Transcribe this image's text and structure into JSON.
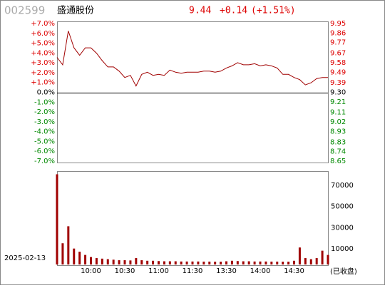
{
  "header": {
    "code": "002599",
    "name": "盛通股份",
    "price": "9.44",
    "change": "+0.14",
    "change_pct": "(+1.51%)"
  },
  "date": "2025-02-13",
  "status": "(已收盘)",
  "chart_data": [
    {
      "type": "line",
      "series": [
        {
          "color": "#a00000",
          "axis": "y2",
          "values": [
            9.63,
            9.56,
            9.88,
            9.72,
            9.65,
            9.72,
            9.72,
            9.67,
            9.6,
            9.54,
            9.54,
            9.5,
            9.44,
            9.46,
            9.36,
            9.47,
            9.49,
            9.46,
            9.47,
            9.46,
            9.51,
            9.49,
            9.48,
            9.49,
            9.49,
            9.49,
            9.5,
            9.5,
            9.49,
            9.5,
            9.53,
            9.55,
            9.58,
            9.56,
            9.56,
            9.57,
            9.55,
            9.56,
            9.55,
            9.53,
            9.47,
            9.47,
            9.44,
            9.42,
            9.37,
            9.39,
            9.43,
            9.44,
            9.44
          ]
        }
      ],
      "ylim": [
        -7,
        7
      ],
      "yticks": [
        {
          "value": 7,
          "label": "+7.0%"
        },
        {
          "value": 6,
          "label": "+6.0%"
        },
        {
          "value": 5,
          "label": "+5.0%"
        },
        {
          "value": 4,
          "label": "+4.0%"
        },
        {
          "value": 3,
          "label": "+3.0%"
        },
        {
          "value": 2,
          "label": "+2.0%"
        },
        {
          "value": 1,
          "label": "+1.0%"
        },
        {
          "value": 0,
          "label": "0.0%"
        },
        {
          "value": -1,
          "label": "-1.0%"
        },
        {
          "value": -2,
          "label": "-2.0%"
        },
        {
          "value": -3,
          "label": "-3.0%"
        },
        {
          "value": -4,
          "label": "-4.0%"
        },
        {
          "value": -5,
          "label": "-5.0%"
        },
        {
          "value": -6,
          "label": "-6.0%"
        },
        {
          "value": -7,
          "label": "-7.0%"
        }
      ],
      "y2lim": [
        8.65,
        9.95
      ],
      "y2ticks": [
        9.95,
        9.86,
        9.77,
        9.67,
        9.58,
        9.49,
        9.39,
        {
          "value": 9.3,
          "label": "9.30"
        },
        9.21,
        9.11,
        9.02,
        8.93,
        8.83,
        8.74,
        8.65
      ]
    },
    {
      "type": "bar",
      "color": "#a00000",
      "categories": [
        null,
        null,
        null,
        null,
        null,
        null,
        "10:00",
        null,
        null,
        null,
        null,
        null,
        "10:30",
        null,
        null,
        null,
        null,
        null,
        "11:00",
        null,
        null,
        null,
        null,
        null,
        "11:30",
        null,
        null,
        null,
        null,
        null,
        "13:30",
        null,
        null,
        null,
        null,
        null,
        "14:00",
        null,
        null,
        null,
        null,
        null,
        "14:30",
        null,
        null,
        null,
        null,
        null,
        null
      ],
      "values": [
        85000,
        20000,
        36000,
        15000,
        12000,
        9000,
        7000,
        6000,
        5500,
        5000,
        4500,
        4000,
        4000,
        3800,
        6000,
        4000,
        3500,
        3500,
        3200,
        3000,
        3000,
        3000,
        2800,
        2800,
        2800,
        2800,
        2700,
        2700,
        2600,
        2600,
        3000,
        3500,
        3200,
        3000,
        3000,
        2800,
        2800,
        2800,
        2700,
        2700,
        2600,
        2600,
        3500,
        16000,
        6000,
        5000,
        6000,
        13000,
        9000
      ],
      "ylim": [
        0,
        88000
      ],
      "yticks": [
        70000,
        50000,
        30000,
        10000
      ]
    }
  ]
}
